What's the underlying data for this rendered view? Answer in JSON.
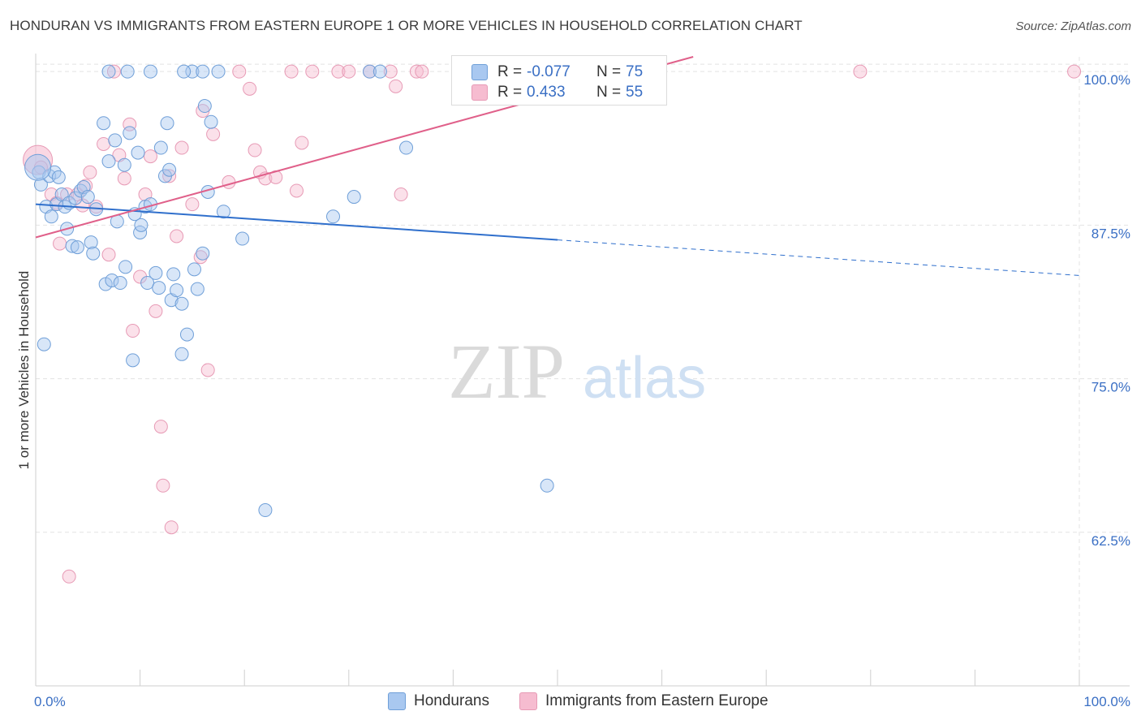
{
  "header": {
    "title": "HONDURAN VS IMMIGRANTS FROM EASTERN EUROPE 1 OR MORE VEHICLES IN HOUSEHOLD CORRELATION CHART",
    "source": "Source: ZipAtlas.com"
  },
  "watermark": {
    "zip": "ZIP",
    "atlas": "atlas"
  },
  "legend": {
    "r_label": "R =",
    "n_label": "N =",
    "hondurans": {
      "r": "-0.077",
      "n": "75"
    },
    "immigrants": {
      "r": "0.433",
      "n": "55"
    }
  },
  "series_labels": {
    "hondurans": "Hondurans",
    "immigrants": "Immigrants from Eastern Europe"
  },
  "colors": {
    "blue_fill": "#a9c8f0",
    "blue_stroke": "#6f9fd8",
    "blue_line": "#2f6fcc",
    "pink_fill": "#f6bcd0",
    "pink_stroke": "#e79ab5",
    "pink_line": "#e0608a",
    "axis_text": "#3a6fc4"
  },
  "chart_data": {
    "type": "scatter",
    "title": "HONDURAN VS IMMIGRANTS FROM EASTERN EUROPE 1 OR MORE VEHICLES IN HOUSEHOLD CORRELATION CHART",
    "xlabel": "",
    "ylabel": "1 or more Vehicles in Household",
    "xlim": [
      0,
      100
    ],
    "ylim": [
      50,
      101.2
    ],
    "x_tick_labels": [
      "0.0%",
      "100.0%"
    ],
    "y_ticks": [
      62.5,
      75.0,
      87.5,
      100.0
    ],
    "y_tick_labels": [
      "62.5%",
      "75.0%",
      "87.5%",
      "100.0%"
    ],
    "grid": true,
    "series": [
      {
        "name": "Hondurans",
        "r": -0.077,
        "n": 75,
        "trend": {
          "x0": 0,
          "y0": 89.2,
          "x1": 50,
          "y1": 86.3,
          "dashed_to_x": 100,
          "dashed_to_y": 83.4
        },
        "points": [
          [
            0.3,
            91.8
          ],
          [
            0.5,
            90.8
          ],
          [
            0.8,
            77.8
          ],
          [
            1.0,
            89.0
          ],
          [
            1.3,
            91.5
          ],
          [
            1.5,
            88.2
          ],
          [
            1.8,
            91.8
          ],
          [
            2.0,
            89.2
          ],
          [
            2.2,
            91.4
          ],
          [
            2.5,
            90.0
          ],
          [
            2.8,
            89.0
          ],
          [
            3.0,
            87.2
          ],
          [
            3.2,
            89.3
          ],
          [
            3.5,
            85.8
          ],
          [
            3.8,
            89.7
          ],
          [
            4.0,
            85.7
          ],
          [
            4.3,
            90.3
          ],
          [
            4.6,
            90.6
          ],
          [
            5.0,
            89.8
          ],
          [
            5.3,
            86.1
          ],
          [
            5.5,
            85.2
          ],
          [
            5.8,
            88.8
          ],
          [
            6.5,
            95.8
          ],
          [
            6.7,
            82.7
          ],
          [
            7.0,
            92.7
          ],
          [
            7.3,
            83.0
          ],
          [
            7.6,
            94.4
          ],
          [
            7.8,
            87.8
          ],
          [
            8.1,
            82.8
          ],
          [
            8.5,
            92.4
          ],
          [
            8.6,
            84.1
          ],
          [
            8.8,
            100.0
          ],
          [
            9.0,
            95.0
          ],
          [
            9.3,
            76.5
          ],
          [
            9.5,
            88.4
          ],
          [
            9.8,
            93.4
          ],
          [
            10.0,
            86.9
          ],
          [
            10.1,
            87.5
          ],
          [
            10.5,
            89.0
          ],
          [
            10.7,
            82.8
          ],
          [
            11.0,
            89.2
          ],
          [
            11.5,
            83.6
          ],
          [
            11.8,
            82.4
          ],
          [
            12.0,
            93.8
          ],
          [
            12.4,
            91.5
          ],
          [
            12.6,
            95.8
          ],
          [
            12.8,
            92.0
          ],
          [
            13.0,
            81.4
          ],
          [
            13.2,
            83.5
          ],
          [
            13.5,
            82.2
          ],
          [
            14.0,
            81.1
          ],
          [
            14.5,
            78.6
          ],
          [
            15.0,
            100.0
          ],
          [
            15.2,
            83.9
          ],
          [
            15.5,
            82.3
          ],
          [
            16.0,
            85.2
          ],
          [
            16.2,
            97.2
          ],
          [
            16.5,
            90.2
          ],
          [
            16.8,
            95.9
          ],
          [
            14.2,
            100.0
          ],
          [
            14.0,
            77.0
          ],
          [
            17.5,
            100.0
          ],
          [
            18.0,
            88.6
          ],
          [
            19.8,
            86.4
          ],
          [
            22.0,
            64.3
          ],
          [
            28.5,
            88.2
          ],
          [
            30.5,
            89.8
          ],
          [
            32.0,
            100.0
          ],
          [
            33.0,
            100.0
          ],
          [
            35.5,
            93.8
          ],
          [
            16.0,
            100.0
          ],
          [
            7.0,
            100.0
          ],
          [
            11.0,
            100.0
          ],
          [
            49.0,
            66.3
          ],
          [
            0.2,
            92.2
          ]
        ]
      },
      {
        "name": "Immigrants from Eastern Europe",
        "r": 0.433,
        "n": 55,
        "trend": {
          "x0": 0,
          "y0": 86.5,
          "x1": 63,
          "y1": 101.2
        },
        "points": [
          [
            0.2,
            92.8
          ],
          [
            0.5,
            92.2
          ],
          [
            1.5,
            90.0
          ],
          [
            2.0,
            89.3
          ],
          [
            2.3,
            86.0
          ],
          [
            3.0,
            90.0
          ],
          [
            3.2,
            58.9
          ],
          [
            4.0,
            90.0
          ],
          [
            4.5,
            89.1
          ],
          [
            4.8,
            90.7
          ],
          [
            5.2,
            91.8
          ],
          [
            5.8,
            89.0
          ],
          [
            6.5,
            94.1
          ],
          [
            7.0,
            85.1
          ],
          [
            8.0,
            93.2
          ],
          [
            8.5,
            91.3
          ],
          [
            9.0,
            95.7
          ],
          [
            9.3,
            78.9
          ],
          [
            10.0,
            83.3
          ],
          [
            10.5,
            90.0
          ],
          [
            11.0,
            93.1
          ],
          [
            11.5,
            80.5
          ],
          [
            12.0,
            71.1
          ],
          [
            12.2,
            66.3
          ],
          [
            12.8,
            91.5
          ],
          [
            13.0,
            62.9
          ],
          [
            13.5,
            86.6
          ],
          [
            14.0,
            93.8
          ],
          [
            15.0,
            89.2
          ],
          [
            15.8,
            84.9
          ],
          [
            16.0,
            96.8
          ],
          [
            16.5,
            75.7
          ],
          [
            17.0,
            94.9
          ],
          [
            18.5,
            91.0
          ],
          [
            19.5,
            100.0
          ],
          [
            20.5,
            98.6
          ],
          [
            21.0,
            93.6
          ],
          [
            21.5,
            91.8
          ],
          [
            22.0,
            91.3
          ],
          [
            23.0,
            91.4
          ],
          [
            24.5,
            100.0
          ],
          [
            25.0,
            90.3
          ],
          [
            25.5,
            94.2
          ],
          [
            26.5,
            100.0
          ],
          [
            29.0,
            100.0
          ],
          [
            30.0,
            100.0
          ],
          [
            32.0,
            100.0
          ],
          [
            34.0,
            100.0
          ],
          [
            34.5,
            98.8
          ],
          [
            35.0,
            90.0
          ],
          [
            36.5,
            100.0
          ],
          [
            37.0,
            100.0
          ],
          [
            79.0,
            100.0
          ],
          [
            99.5,
            100.0
          ],
          [
            7.5,
            100.0
          ]
        ]
      }
    ]
  }
}
